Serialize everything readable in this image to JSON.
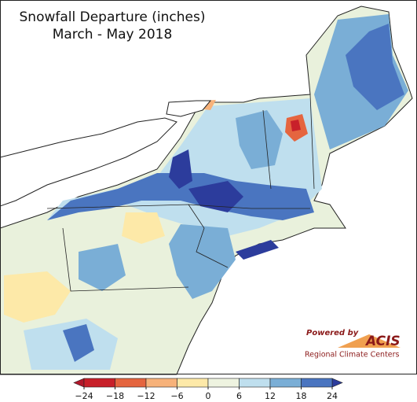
{
  "header": {
    "title": "Snowfall Departure (inches)",
    "subtitle": "March - May 2018"
  },
  "colorbar": {
    "ticks": [
      {
        "value": -24,
        "label": "−24"
      },
      {
        "value": -18,
        "label": "−18"
      },
      {
        "value": -12,
        "label": "−12"
      },
      {
        "value": -6,
        "label": "−6"
      },
      0,
      6,
      12,
      18,
      24
    ],
    "colors": [
      "#b2182b",
      "#c8202a",
      "#e5653f",
      "#f7b27a",
      "#fde9a8",
      "#eef3e0",
      "#bfdfee",
      "#7aaed6",
      "#4a75c0",
      "#2c3c9c"
    ]
  },
  "logo": {
    "powered": "Powered by",
    "name": "ACIS",
    "org": "Regional Climate Centers"
  }
}
